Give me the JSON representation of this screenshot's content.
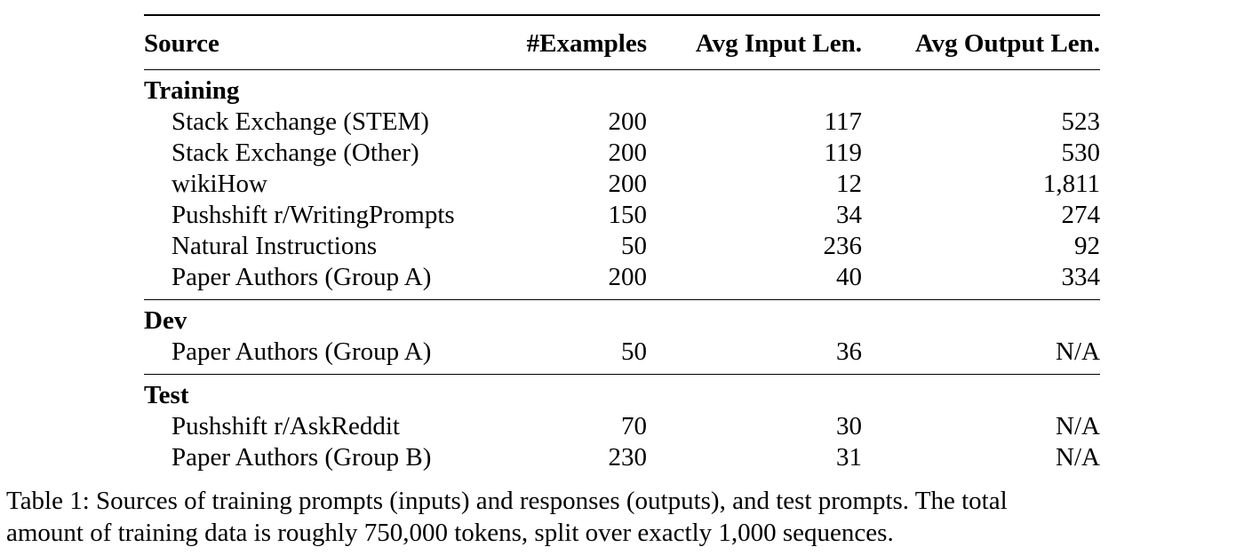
{
  "table": {
    "headers": {
      "source": "Source",
      "examples": "#Examples",
      "avg_input": "Avg Input Len.",
      "avg_output": "Avg Output Len."
    },
    "sections": [
      {
        "name": "Training",
        "rows": [
          {
            "source": "Stack Exchange (STEM)",
            "examples": "200",
            "avg_input": "117",
            "avg_output": "523"
          },
          {
            "source": "Stack Exchange (Other)",
            "examples": "200",
            "avg_input": "119",
            "avg_output": "530"
          },
          {
            "source": "wikiHow",
            "examples": "200",
            "avg_input": "12",
            "avg_output": "1,811"
          },
          {
            "source": "Pushshift r/WritingPrompts",
            "examples": "150",
            "avg_input": "34",
            "avg_output": "274"
          },
          {
            "source": "Natural Instructions",
            "examples": "50",
            "avg_input": "236",
            "avg_output": "92"
          },
          {
            "source": "Paper Authors (Group A)",
            "examples": "200",
            "avg_input": "40",
            "avg_output": "334"
          }
        ]
      },
      {
        "name": "Dev",
        "rows": [
          {
            "source": "Paper Authors (Group A)",
            "examples": "50",
            "avg_input": "36",
            "avg_output": "N/A"
          }
        ]
      },
      {
        "name": "Test",
        "rows": [
          {
            "source": "Pushshift r/AskReddit",
            "examples": "70",
            "avg_input": "30",
            "avg_output": "N/A"
          },
          {
            "source": "Paper Authors (Group B)",
            "examples": "230",
            "avg_input": "31",
            "avg_output": "N/A"
          }
        ]
      }
    ]
  },
  "caption": {
    "line1": "Table 1: Sources of training prompts (inputs) and responses (outputs), and test prompts. The total",
    "line2": "amount of training data is roughly 750,000 tokens, split over exactly 1,000 sequences."
  }
}
